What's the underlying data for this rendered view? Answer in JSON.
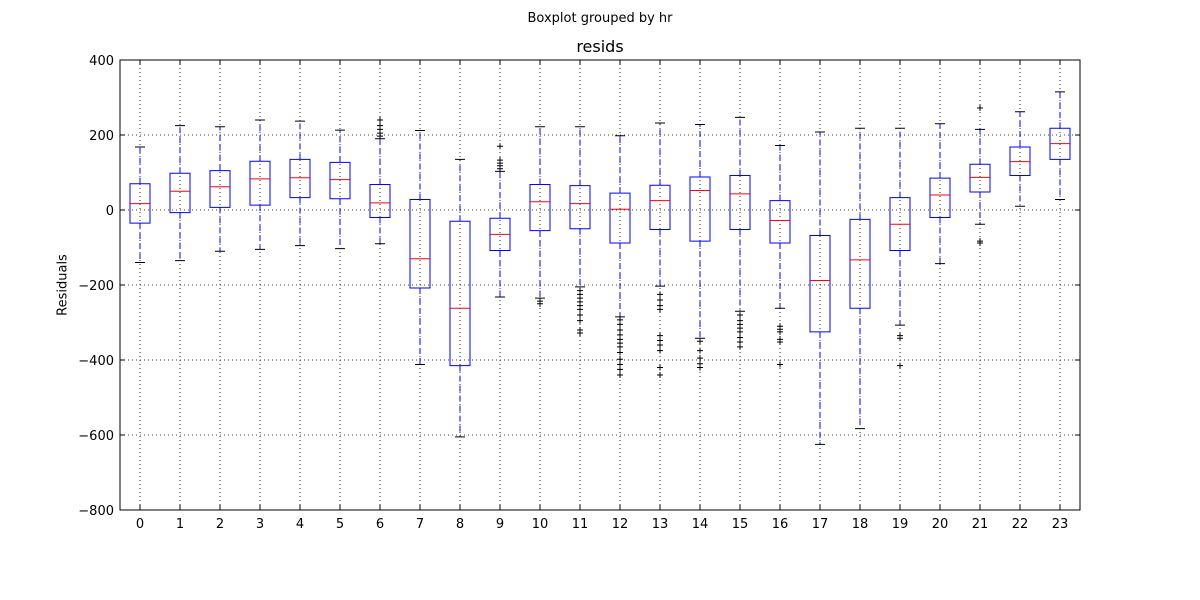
{
  "chart_data": {
    "type": "boxplot",
    "suptitle": "Boxplot grouped by hr",
    "title": "resids",
    "xlabel": "",
    "ylabel": "Residuals",
    "ylim": [
      -800,
      400
    ],
    "yticks": [
      400,
      200,
      0,
      -200,
      -400,
      -600,
      -800
    ],
    "ytick_labels": [
      "400",
      "200",
      "0",
      "−200",
      "−400",
      "−600",
      "−800"
    ],
    "grid": true,
    "colors": {
      "box": "#0000ff",
      "median": "#ff0000",
      "whisker": "#0000ff",
      "cap": "#000000",
      "flier": "#000000"
    },
    "categories": [
      "0",
      "1",
      "2",
      "3",
      "4",
      "5",
      "6",
      "7",
      "8",
      "9",
      "10",
      "11",
      "12",
      "13",
      "14",
      "15",
      "16",
      "17",
      "18",
      "19",
      "20",
      "21",
      "22",
      "23"
    ],
    "boxes": [
      {
        "q1": -35,
        "median": 17,
        "q3": 70,
        "whislo": -140,
        "whishi": 168,
        "fliers": []
      },
      {
        "q1": -7,
        "median": 50,
        "q3": 98,
        "whislo": -135,
        "whishi": 225,
        "fliers": []
      },
      {
        "q1": 7,
        "median": 62,
        "q3": 105,
        "whislo": -110,
        "whishi": 222,
        "fliers": []
      },
      {
        "q1": 13,
        "median": 83,
        "q3": 130,
        "whislo": -105,
        "whishi": 240,
        "fliers": []
      },
      {
        "q1": 33,
        "median": 86,
        "q3": 135,
        "whislo": -95,
        "whishi": 237,
        "fliers": []
      },
      {
        "q1": 30,
        "median": 81,
        "q3": 127,
        "whislo": -103,
        "whishi": 213,
        "fliers": []
      },
      {
        "q1": -20,
        "median": 19,
        "q3": 68,
        "whislo": -90,
        "whishi": 190,
        "fliers": [
          197,
          205,
          215,
          225,
          240
        ]
      },
      {
        "q1": -208,
        "median": -130,
        "q3": 28,
        "whislo": -412,
        "whishi": 212,
        "fliers": []
      },
      {
        "q1": -415,
        "median": -262,
        "q3": -30,
        "whislo": -605,
        "whishi": 135,
        "fliers": []
      },
      {
        "q1": -108,
        "median": -65,
        "q3": -22,
        "whislo": -232,
        "whishi": 103,
        "fliers": [
          110,
          118,
          125,
          133,
          170
        ]
      },
      {
        "q1": -55,
        "median": 22,
        "q3": 68,
        "whislo": -235,
        "whishi": 222,
        "fliers": [
          -243,
          -250
        ]
      },
      {
        "q1": -50,
        "median": 17,
        "q3": 65,
        "whislo": -205,
        "whishi": 222,
        "fliers": [
          -215,
          -225,
          -235,
          -245,
          -255,
          -265,
          -280,
          -295,
          -320,
          -328
        ]
      },
      {
        "q1": -88,
        "median": 2,
        "q3": 45,
        "whislo": -285,
        "whishi": 198,
        "fliers": [
          -293,
          -305,
          -320,
          -333,
          -345,
          -355,
          -365,
          -380,
          -398,
          -412,
          -425,
          -440
        ]
      },
      {
        "q1": -52,
        "median": 25,
        "q3": 66,
        "whislo": -203,
        "whishi": 232,
        "fliers": [
          -225,
          -240,
          -255,
          -265,
          -335,
          -348,
          -360,
          -375,
          -420,
          -440
        ]
      },
      {
        "q1": -83,
        "median": 52,
        "q3": 88,
        "whislo": -342,
        "whishi": 228,
        "fliers": [
          -350,
          -375,
          -395,
          -410,
          -420
        ]
      },
      {
        "q1": -52,
        "median": 43,
        "q3": 92,
        "whislo": -270,
        "whishi": 247,
        "fliers": [
          -280,
          -295,
          -305,
          -315,
          -325,
          -340,
          -352,
          -365
        ]
      },
      {
        "q1": -88,
        "median": -28,
        "q3": 25,
        "whislo": -262,
        "whishi": 172,
        "fliers": [
          -310,
          -318,
          -325,
          -345,
          -352,
          -412
        ]
      },
      {
        "q1": -325,
        "median": -188,
        "q3": -68,
        "whislo": -625,
        "whishi": 208,
        "fliers": []
      },
      {
        "q1": -262,
        "median": -133,
        "q3": -25,
        "whislo": -583,
        "whishi": 218,
        "fliers": []
      },
      {
        "q1": -108,
        "median": -38,
        "q3": 33,
        "whislo": -307,
        "whishi": 218,
        "fliers": [
          -335,
          -342,
          -415
        ]
      },
      {
        "q1": -20,
        "median": 40,
        "q3": 85,
        "whislo": -143,
        "whishi": 230,
        "fliers": []
      },
      {
        "q1": 48,
        "median": 87,
        "q3": 122,
        "whislo": -38,
        "whishi": 215,
        "fliers": [
          -83,
          -88,
          272
        ]
      },
      {
        "q1": 92,
        "median": 129,
        "q3": 168,
        "whislo": 10,
        "whishi": 262,
        "fliers": []
      },
      {
        "q1": 135,
        "median": 177,
        "q3": 218,
        "whislo": 28,
        "whishi": 315,
        "fliers": []
      }
    ]
  }
}
